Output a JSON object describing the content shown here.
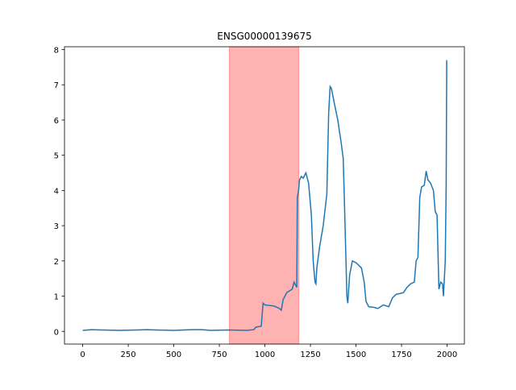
{
  "chart_data": {
    "type": "line",
    "title": "ENSG00000139675",
    "x": [
      0,
      50,
      100,
      200,
      300,
      350,
      400,
      500,
      600,
      650,
      700,
      800,
      900,
      940,
      950,
      980,
      990,
      1000,
      1050,
      1080,
      1090,
      1100,
      1120,
      1150,
      1160,
      1170,
      1175,
      1178,
      1185,
      1190,
      1200,
      1210,
      1225,
      1240,
      1255,
      1265,
      1275,
      1280,
      1285,
      1300,
      1320,
      1340,
      1350,
      1358,
      1365,
      1380,
      1400,
      1420,
      1430,
      1440,
      1445,
      1450,
      1455,
      1465,
      1480,
      1500,
      1530,
      1545,
      1555,
      1570,
      1600,
      1620,
      1650,
      1680,
      1700,
      1720,
      1760,
      1780,
      1800,
      1820,
      1830,
      1840,
      1850,
      1860,
      1875,
      1885,
      1895,
      1910,
      1925,
      1935,
      1945,
      1955,
      1965,
      1975,
      1980,
      1990,
      1995,
      1998
    ],
    "values": [
      0.03,
      0.05,
      0.04,
      0.03,
      0.04,
      0.05,
      0.04,
      0.03,
      0.05,
      0.05,
      0.03,
      0.04,
      0.03,
      0.05,
      0.12,
      0.15,
      0.8,
      0.75,
      0.72,
      0.65,
      0.6,
      0.9,
      1.1,
      1.2,
      1.4,
      1.3,
      1.25,
      3.8,
      4.0,
      4.3,
      4.4,
      4.35,
      4.5,
      4.2,
      3.3,
      2.0,
      1.4,
      1.35,
      1.8,
      2.4,
      3.0,
      3.9,
      6.2,
      6.95,
      6.9,
      6.5,
      6.0,
      5.3,
      4.9,
      3.0,
      2.0,
      1.0,
      0.8,
      1.6,
      2.0,
      1.95,
      1.8,
      1.4,
      0.85,
      0.7,
      0.68,
      0.65,
      0.75,
      0.7,
      0.95,
      1.05,
      1.1,
      1.25,
      1.35,
      1.4,
      2.0,
      2.1,
      3.8,
      4.1,
      4.15,
      4.55,
      4.3,
      4.2,
      4.0,
      3.4,
      3.3,
      1.2,
      1.4,
      1.35,
      1.0,
      2.0,
      4.2,
      7.7
    ],
    "color": "#1f77b4",
    "highlight_span": [
      805,
      1186
    ],
    "highlight_color": "#ff0000",
    "xlim": [
      -100,
      2095
    ],
    "ylim": [
      -0.36,
      8.08
    ],
    "xticks": [
      0,
      250,
      500,
      750,
      1000,
      1250,
      1500,
      1750,
      2000
    ],
    "yticks": [
      0,
      1,
      2,
      3,
      4,
      5,
      6,
      7,
      8
    ]
  }
}
